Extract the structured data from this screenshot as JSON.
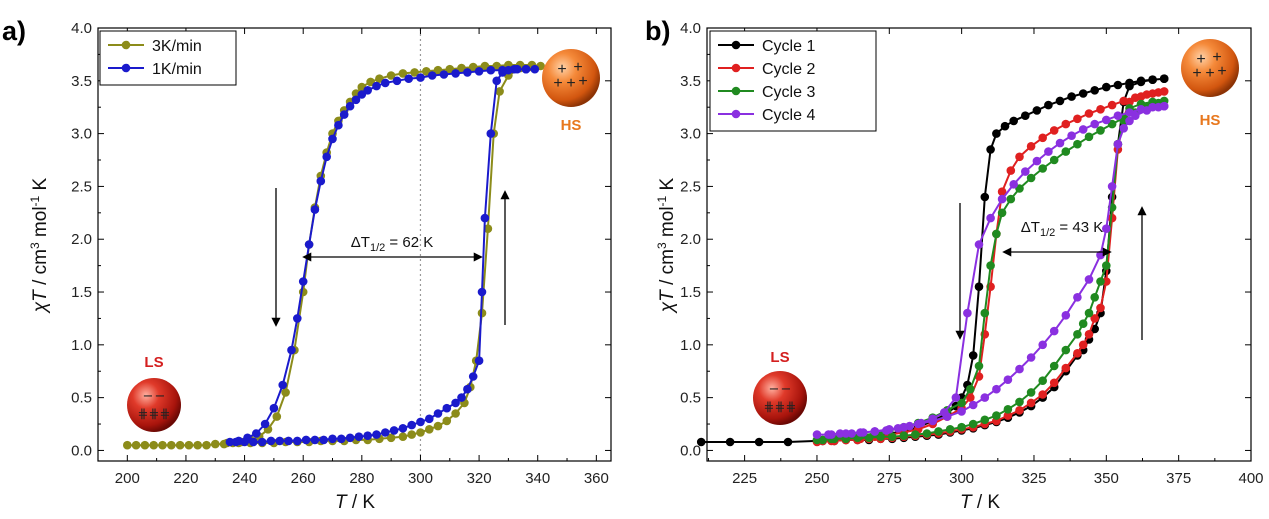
{
  "chart_data": [
    {
      "type": "line",
      "panel_label": "a)",
      "xlabel_var": "T",
      "xlabel_unit": " / K",
      "ylabel_var": "χT",
      "ylabel_unit_a": " / cm",
      "ylabel_sup1": "3",
      "ylabel_unit_b": " mol",
      "ylabel_sup2": "-1",
      "ylabel_unit_c": " K",
      "xlim": [
        190,
        365
      ],
      "ylim": [
        -0.1,
        4.0
      ],
      "xticks": [
        200,
        220,
        240,
        260,
        280,
        300,
        320,
        340,
        360
      ],
      "yticks": [
        0.0,
        0.5,
        1.0,
        1.5,
        2.0,
        2.5,
        3.0,
        3.5,
        4.0
      ],
      "vline_x": 300,
      "legend": "top-left",
      "series": [
        {
          "name": "3K/min",
          "color": "#8c8c1a",
          "x": [
            200,
            203,
            206,
            209,
            212,
            215,
            218,
            221,
            224,
            227,
            230,
            233,
            236,
            239,
            242,
            245,
            248,
            251,
            254,
            257,
            260,
            262,
            264,
            266,
            268,
            270,
            272,
            274,
            276,
            278,
            280,
            283,
            286,
            290,
            294,
            298,
            302,
            306,
            310,
            314,
            318,
            322,
            326,
            330,
            334,
            338,
            341,
            338,
            334,
            330,
            327,
            325,
            323,
            321,
            319,
            317,
            315,
            312,
            309,
            306,
            303,
            300,
            297,
            294,
            290,
            286,
            282,
            278,
            274,
            270,
            266,
            262,
            258,
            254,
            250,
            246,
            242,
            238,
            234
          ],
          "y": [
            0.05,
            0.05,
            0.05,
            0.05,
            0.05,
            0.05,
            0.05,
            0.05,
            0.05,
            0.05,
            0.06,
            0.06,
            0.07,
            0.08,
            0.1,
            0.13,
            0.2,
            0.32,
            0.55,
            0.95,
            1.5,
            1.95,
            2.3,
            2.6,
            2.82,
            3.0,
            3.12,
            3.22,
            3.3,
            3.38,
            3.44,
            3.49,
            3.52,
            3.55,
            3.57,
            3.58,
            3.59,
            3.6,
            3.61,
            3.62,
            3.63,
            3.64,
            3.64,
            3.65,
            3.65,
            3.65,
            3.64,
            3.63,
            3.62,
            3.55,
            3.4,
            3.0,
            2.1,
            1.3,
            0.85,
            0.6,
            0.45,
            0.35,
            0.28,
            0.23,
            0.2,
            0.17,
            0.15,
            0.13,
            0.12,
            0.11,
            0.1,
            0.1,
            0.09,
            0.09,
            0.09,
            0.08,
            0.08,
            0.08,
            0.07,
            0.07,
            0.07,
            0.07,
            0.07
          ]
        },
        {
          "name": "1K/min",
          "color": "#1a1acc",
          "x": [
            235,
            238,
            241,
            244,
            247,
            250,
            253,
            256,
            258,
            260,
            262,
            264,
            266,
            268,
            270,
            272,
            274,
            276,
            278,
            280,
            282,
            285,
            288,
            292,
            296,
            300,
            304,
            308,
            312,
            316,
            320,
            324,
            328,
            332,
            336,
            339,
            336,
            333,
            330,
            328,
            326,
            324,
            322,
            321,
            320,
            318,
            316,
            314,
            312,
            309,
            306,
            303,
            300,
            297,
            294,
            291,
            288,
            285,
            282,
            279,
            276,
            273,
            270,
            267,
            264,
            261,
            258,
            255,
            252,
            249,
            246,
            243,
            240,
            237
          ],
          "y": [
            0.08,
            0.09,
            0.12,
            0.16,
            0.25,
            0.4,
            0.62,
            0.95,
            1.25,
            1.6,
            1.95,
            2.28,
            2.55,
            2.78,
            2.95,
            3.08,
            3.18,
            3.26,
            3.32,
            3.37,
            3.41,
            3.45,
            3.48,
            3.5,
            3.52,
            3.53,
            3.55,
            3.56,
            3.57,
            3.58,
            3.59,
            3.6,
            3.6,
            3.61,
            3.61,
            3.61,
            3.61,
            3.61,
            3.6,
            3.58,
            3.5,
            3.0,
            2.2,
            1.5,
            0.85,
            0.7,
            0.58,
            0.5,
            0.45,
            0.4,
            0.35,
            0.3,
            0.27,
            0.24,
            0.21,
            0.19,
            0.17,
            0.15,
            0.14,
            0.13,
            0.12,
            0.11,
            0.11,
            0.1,
            0.1,
            0.1,
            0.09,
            0.09,
            0.09,
            0.09,
            0.08,
            0.08,
            0.08,
            0.08
          ]
        }
      ],
      "annotations": {
        "delta_main": "ΔT",
        "delta_sub": "1/2",
        "delta_value": " = 62 K",
        "hs_label": "HS",
        "ls_label": "LS",
        "hs_color": "#e8781e",
        "ls_color": "#d42020"
      }
    },
    {
      "type": "line",
      "panel_label": "b)",
      "xlabel_var": "T",
      "xlabel_unit": " / K",
      "ylabel_var": "χT",
      "ylabel_unit_a": " / cm",
      "ylabel_sup1": "3",
      "ylabel_unit_b": " mol",
      "ylabel_sup2": "-1",
      "ylabel_unit_c": " K",
      "xlim": [
        212,
        400
      ],
      "ylim": [
        -0.1,
        4.0
      ],
      "xticks": [
        225,
        250,
        275,
        300,
        325,
        350,
        375,
        400
      ],
      "yticks": [
        0.0,
        0.5,
        1.0,
        1.5,
        2.0,
        2.5,
        3.0,
        3.5,
        4.0
      ],
      "legend": "top-left",
      "series": [
        {
          "name": "Cycle 1",
          "color": "#000000",
          "x": [
            210,
            220,
            230,
            240,
            250,
            255,
            260,
            265,
            270,
            275,
            280,
            285,
            290,
            295,
            298,
            300,
            302,
            304,
            306,
            308,
            310,
            312,
            315,
            318,
            322,
            326,
            330,
            334,
            338,
            342,
            346,
            350,
            354,
            358,
            362,
            366,
            370,
            370,
            366,
            362,
            358,
            356,
            354,
            352,
            350,
            348,
            346,
            344,
            342,
            340,
            336,
            332,
            328,
            324,
            320,
            316,
            312,
            308,
            304,
            300,
            296,
            292,
            288,
            284,
            280,
            276,
            272,
            268,
            264,
            260,
            256,
            252
          ],
          "y": [
            0.08,
            0.08,
            0.08,
            0.08,
            0.09,
            0.1,
            0.11,
            0.12,
            0.14,
            0.16,
            0.18,
            0.22,
            0.28,
            0.35,
            0.42,
            0.5,
            0.62,
            0.9,
            1.55,
            2.4,
            2.85,
            3.0,
            3.07,
            3.12,
            3.17,
            3.22,
            3.27,
            3.31,
            3.35,
            3.38,
            3.41,
            3.44,
            3.46,
            3.48,
            3.5,
            3.51,
            3.52,
            3.52,
            3.51,
            3.49,
            3.45,
            3.3,
            2.9,
            2.4,
            1.7,
            1.3,
            1.15,
            1.05,
            0.95,
            0.9,
            0.75,
            0.6,
            0.5,
            0.42,
            0.36,
            0.31,
            0.27,
            0.24,
            0.21,
            0.19,
            0.17,
            0.15,
            0.14,
            0.13,
            0.12,
            0.11,
            0.11,
            0.1,
            0.1,
            0.1,
            0.09,
            0.09
          ]
        },
        {
          "name": "Cycle 2",
          "color": "#e02020",
          "x": [
            250,
            255,
            260,
            265,
            270,
            275,
            280,
            285,
            290,
            295,
            300,
            303,
            306,
            308,
            310,
            312,
            314,
            317,
            320,
            324,
            328,
            332,
            336,
            340,
            344,
            348,
            352,
            356,
            360,
            364,
            368,
            370,
            366,
            362,
            358,
            356,
            354,
            352,
            350,
            348,
            346,
            344,
            342,
            340,
            336,
            332,
            328,
            324,
            320,
            316,
            312,
            308,
            304,
            300,
            296,
            292,
            288,
            284,
            280,
            276,
            272,
            268,
            264,
            260,
            256,
            252
          ],
          "y": [
            0.08,
            0.09,
            0.1,
            0.11,
            0.13,
            0.15,
            0.17,
            0.2,
            0.25,
            0.32,
            0.4,
            0.5,
            0.7,
            1.1,
            1.55,
            2.05,
            2.45,
            2.65,
            2.78,
            2.88,
            2.96,
            3.03,
            3.09,
            3.14,
            3.19,
            3.23,
            3.27,
            3.31,
            3.34,
            3.37,
            3.39,
            3.4,
            3.38,
            3.35,
            3.3,
            3.15,
            2.85,
            2.2,
            1.6,
            1.35,
            1.25,
            1.1,
            1.0,
            0.92,
            0.78,
            0.64,
            0.53,
            0.45,
            0.38,
            0.33,
            0.28,
            0.25,
            0.22,
            0.2,
            0.18,
            0.16,
            0.15,
            0.14,
            0.13,
            0.12,
            0.11,
            0.11,
            0.1,
            0.1,
            0.09,
            0.09
          ]
        },
        {
          "name": "Cycle 3",
          "color": "#208a20",
          "x": [
            250,
            255,
            260,
            265,
            270,
            275,
            280,
            285,
            290,
            295,
            300,
            303,
            306,
            308,
            310,
            312,
            314,
            317,
            320,
            324,
            328,
            332,
            336,
            340,
            344,
            348,
            352,
            356,
            360,
            364,
            368,
            370,
            366,
            362,
            358,
            356,
            354,
            352,
            350,
            348,
            346,
            344,
            342,
            340,
            336,
            332,
            328,
            324,
            320,
            316,
            312,
            308,
            304,
            300,
            296,
            292,
            288,
            284,
            280,
            276,
            272,
            268,
            264,
            260,
            256,
            252
          ],
          "y": [
            0.1,
            0.11,
            0.12,
            0.14,
            0.16,
            0.19,
            0.22,
            0.26,
            0.31,
            0.38,
            0.45,
            0.58,
            0.8,
            1.3,
            1.75,
            2.05,
            2.25,
            2.38,
            2.48,
            2.58,
            2.67,
            2.75,
            2.83,
            2.9,
            2.97,
            3.03,
            3.09,
            3.15,
            3.2,
            3.25,
            3.29,
            3.31,
            3.3,
            3.28,
            3.24,
            3.12,
            2.9,
            2.3,
            1.75,
            1.6,
            1.45,
            1.3,
            1.2,
            1.1,
            0.95,
            0.8,
            0.66,
            0.55,
            0.46,
            0.39,
            0.33,
            0.29,
            0.25,
            0.22,
            0.2,
            0.18,
            0.16,
            0.15,
            0.14,
            0.13,
            0.13,
            0.12,
            0.12,
            0.11,
            0.11,
            0.1
          ]
        },
        {
          "name": "Cycle 4",
          "color": "#8a30e0",
          "x": [
            250,
            255,
            260,
            265,
            270,
            275,
            280,
            285,
            290,
            295,
            300,
            304,
            308,
            312,
            316,
            320,
            324,
            328,
            332,
            336,
            340,
            344,
            348,
            350,
            352,
            354,
            356,
            358,
            360,
            364,
            368,
            370,
            370,
            366,
            362,
            358,
            354,
            350,
            346,
            342,
            338,
            334,
            330,
            326,
            322,
            318,
            314,
            310,
            306,
            302,
            298,
            294,
            290,
            286,
            282,
            278,
            274,
            270,
            266,
            262,
            258,
            254
          ],
          "y": [
            0.15,
            0.15,
            0.16,
            0.17,
            0.18,
            0.2,
            0.22,
            0.25,
            0.28,
            0.32,
            0.37,
            0.43,
            0.5,
            0.58,
            0.67,
            0.77,
            0.88,
            1.0,
            1.13,
            1.28,
            1.45,
            1.62,
            1.85,
            2.1,
            2.5,
            2.9,
            3.05,
            3.12,
            3.17,
            3.22,
            3.25,
            3.26,
            3.26,
            3.25,
            3.23,
            3.2,
            3.17,
            3.13,
            3.09,
            3.04,
            2.98,
            2.91,
            2.83,
            2.74,
            2.64,
            2.52,
            2.38,
            2.2,
            1.95,
            1.3,
            0.5,
            0.36,
            0.3,
            0.26,
            0.23,
            0.21,
            0.19,
            0.18,
            0.17,
            0.16,
            0.16,
            0.15
          ]
        }
      ],
      "annotations": {
        "delta_main": "ΔT",
        "delta_sub": "1/2",
        "delta_value": " = 43 K",
        "hs_label": "HS",
        "ls_label": "LS",
        "hs_color": "#e8781e",
        "ls_color": "#d42020"
      }
    }
  ]
}
